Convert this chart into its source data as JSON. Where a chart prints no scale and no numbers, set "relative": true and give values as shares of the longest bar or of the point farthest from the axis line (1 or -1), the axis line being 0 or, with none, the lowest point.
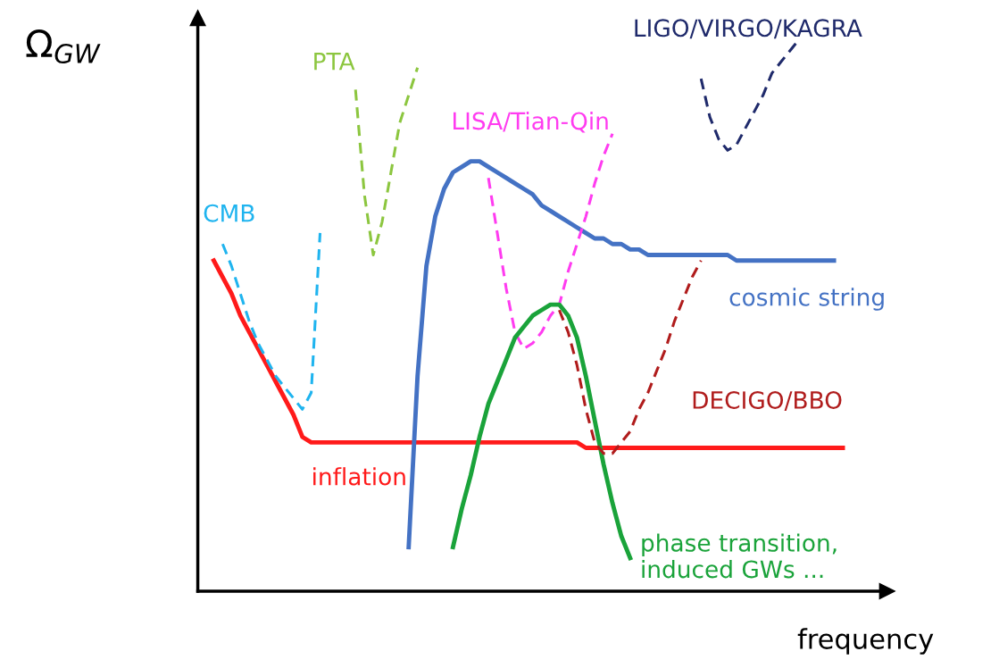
{
  "chart_data": {
    "type": "line",
    "relative": true,
    "xlabel": "frequency",
    "ylabel": "Ω$_{GW}$",
    "legend": false,
    "grid": false,
    "categories": [
      null,
      null,
      null,
      null,
      null,
      null,
      null,
      null,
      null,
      null,
      null,
      null,
      null,
      null,
      null,
      null,
      null,
      null,
      null,
      null,
      null,
      null,
      null,
      null,
      null,
      null,
      null,
      null,
      null,
      null,
      null,
      null,
      null,
      null,
      null,
      null,
      null,
      null,
      null,
      null,
      null,
      null,
      null,
      null,
      null,
      null,
      null,
      null,
      null,
      null,
      null,
      null,
      null,
      null,
      null,
      null,
      null,
      null,
      null,
      null,
      null,
      null,
      null,
      null,
      null,
      null,
      null,
      null,
      null,
      null,
      null,
      null,
      null
    ],
    "series": [
      {
        "name": "inflation",
        "color": "#ff1a1a",
        "line_style": "solid",
        "values": [
          0.6,
          0.57,
          0.54,
          0.5,
          0.47,
          0.44,
          0.41,
          0.38,
          0.35,
          0.32,
          0.28,
          0.27,
          0.27,
          0.27,
          0.27,
          0.27,
          0.27,
          0.27,
          0.27,
          0.27,
          0.27,
          0.27,
          0.27,
          0.27,
          0.27,
          0.27,
          0.27,
          0.27,
          0.27,
          0.27,
          0.27,
          0.27,
          0.27,
          0.27,
          0.27,
          0.27,
          0.27,
          0.27,
          0.27,
          0.27,
          0.27,
          0.27,
          0.26,
          0.26,
          0.26,
          0.26,
          0.26,
          0.26,
          0.26,
          0.26,
          0.26,
          0.26,
          0.26,
          0.26,
          0.26,
          0.26,
          0.26,
          0.26,
          0.26,
          0.26,
          0.26,
          0.26,
          0.26,
          0.26,
          0.26,
          0.26,
          0.26,
          0.26,
          0.26,
          0.26,
          0.26,
          0.26,
          null
        ]
      },
      {
        "name": "CMB",
        "color": "#1fb4ef",
        "line_style": "dashed",
        "values": [
          null,
          0.63,
          0.59,
          0.54,
          0.49,
          0.45,
          0.42,
          0.39,
          0.37,
          0.35,
          0.33,
          0.36,
          0.65,
          null,
          null,
          null,
          null,
          null,
          null,
          null,
          null,
          null,
          null,
          null,
          null,
          null,
          null,
          null,
          null,
          null,
          null,
          null,
          null,
          null,
          null,
          null,
          null,
          null,
          null,
          null,
          null,
          null,
          null,
          null,
          null,
          null,
          null,
          null,
          null,
          null,
          null,
          null,
          null,
          null,
          null,
          null,
          null,
          null,
          null,
          null,
          null,
          null,
          null,
          null,
          null,
          null,
          null,
          null,
          null,
          null,
          null,
          null,
          null
        ]
      },
      {
        "name": "PTA",
        "color": "#8cc63f",
        "line_style": "dashed",
        "values": [
          null,
          null,
          null,
          null,
          null,
          null,
          null,
          null,
          null,
          null,
          null,
          null,
          null,
          null,
          null,
          null,
          0.91,
          0.72,
          0.61,
          0.67,
          0.76,
          0.85,
          0.9,
          0.95,
          null,
          null,
          null,
          null,
          null,
          null,
          null,
          null,
          null,
          null,
          null,
          null,
          null,
          null,
          null,
          null,
          null,
          null,
          null,
          null,
          null,
          null,
          null,
          null,
          null,
          null,
          null,
          null,
          null,
          null,
          null,
          null,
          null,
          null,
          null,
          null,
          null,
          null,
          null,
          null,
          null,
          null,
          null,
          null,
          null,
          null,
          null,
          null,
          null
        ]
      },
      {
        "name": "cosmic string",
        "color": "#4472c4",
        "line_style": "solid",
        "values": [
          null,
          null,
          null,
          null,
          null,
          null,
          null,
          null,
          null,
          null,
          null,
          null,
          null,
          null,
          null,
          null,
          null,
          null,
          null,
          null,
          null,
          null,
          0.08,
          0.39,
          0.59,
          0.68,
          0.73,
          0.76,
          0.77,
          0.78,
          0.78,
          0.77,
          0.76,
          0.75,
          0.74,
          0.73,
          0.72,
          0.7,
          0.69,
          0.68,
          0.67,
          0.66,
          0.65,
          0.64,
          0.64,
          0.63,
          0.63,
          0.62,
          0.62,
          0.61,
          0.61,
          0.61,
          0.61,
          0.61,
          0.61,
          0.61,
          0.61,
          0.61,
          0.61,
          0.6,
          0.6,
          0.6,
          0.6,
          0.6,
          0.6,
          0.6,
          0.6,
          0.6,
          0.6,
          0.6,
          0.6,
          null,
          null
        ]
      },
      {
        "name": "LISA/Tian-Qin",
        "color": "#ff3cf0",
        "line_style": "dashed",
        "values": [
          null,
          null,
          null,
          null,
          null,
          null,
          null,
          null,
          null,
          null,
          null,
          null,
          null,
          null,
          null,
          null,
          null,
          null,
          null,
          null,
          null,
          null,
          null,
          null,
          null,
          null,
          null,
          null,
          null,
          null,
          null,
          0.75,
          0.65,
          0.55,
          0.47,
          0.44,
          0.45,
          0.47,
          0.5,
          0.52,
          0.58,
          0.63,
          0.68,
          0.74,
          0.79,
          0.83,
          null,
          null,
          null,
          null,
          null,
          null,
          null,
          null,
          null,
          null,
          null,
          null,
          null,
          null,
          null,
          null,
          null,
          null,
          null,
          null,
          null,
          null,
          null,
          null,
          null,
          null,
          null
        ]
      },
      {
        "name": "phase transition,\ninduced GWs ...",
        "color": "#1aa33a",
        "line_style": "solid",
        "values": [
          null,
          null,
          null,
          null,
          null,
          null,
          null,
          null,
          null,
          null,
          null,
          null,
          null,
          null,
          null,
          null,
          null,
          null,
          null,
          null,
          null,
          null,
          null,
          null,
          null,
          null,
          null,
          0.08,
          0.15,
          0.21,
          0.28,
          0.34,
          0.38,
          0.42,
          0.46,
          0.48,
          0.5,
          0.51,
          0.52,
          0.52,
          0.5,
          0.46,
          0.39,
          0.31,
          0.23,
          0.16,
          0.1,
          0.06,
          null,
          null,
          null,
          null,
          null,
          null,
          null,
          null,
          null,
          null,
          null,
          null,
          null,
          null,
          null,
          null,
          null,
          null,
          null,
          null,
          null,
          null,
          null,
          null,
          null
        ]
      },
      {
        "name": "DECIGO/BBO",
        "color": "#b01c1c",
        "line_style": "dashed",
        "values": [
          null,
          null,
          null,
          null,
          null,
          null,
          null,
          null,
          null,
          null,
          null,
          null,
          null,
          null,
          null,
          null,
          null,
          null,
          null,
          null,
          null,
          null,
          null,
          null,
          null,
          null,
          null,
          null,
          null,
          null,
          null,
          null,
          null,
          null,
          null,
          null,
          null,
          null,
          null,
          0.51,
          0.47,
          0.41,
          0.33,
          0.27,
          0.25,
          0.25,
          0.27,
          0.29,
          0.33,
          0.36,
          0.4,
          0.44,
          0.49,
          0.53,
          0.57,
          0.6,
          null,
          null,
          null,
          null,
          null,
          null,
          null,
          null,
          null,
          null,
          null,
          null,
          null,
          null,
          null,
          null,
          null
        ]
      },
      {
        "name": "LIGO/VIRGO/KAGRA",
        "color": "#1f2a6b",
        "line_style": "dashed",
        "values": [
          null,
          null,
          null,
          null,
          null,
          null,
          null,
          null,
          null,
          null,
          null,
          null,
          null,
          null,
          null,
          null,
          null,
          null,
          null,
          null,
          null,
          null,
          null,
          null,
          null,
          null,
          null,
          null,
          null,
          null,
          null,
          null,
          null,
          null,
          null,
          null,
          null,
          null,
          null,
          null,
          null,
          null,
          null,
          null,
          null,
          null,
          null,
          null,
          null,
          null,
          null,
          null,
          null,
          null,
          null,
          0.93,
          0.86,
          0.82,
          0.8,
          0.81,
          0.84,
          0.87,
          0.9,
          0.94,
          0.96,
          0.98,
          1.0,
          null,
          null,
          null,
          null,
          null,
          null
        ]
      }
    ]
  }
}
